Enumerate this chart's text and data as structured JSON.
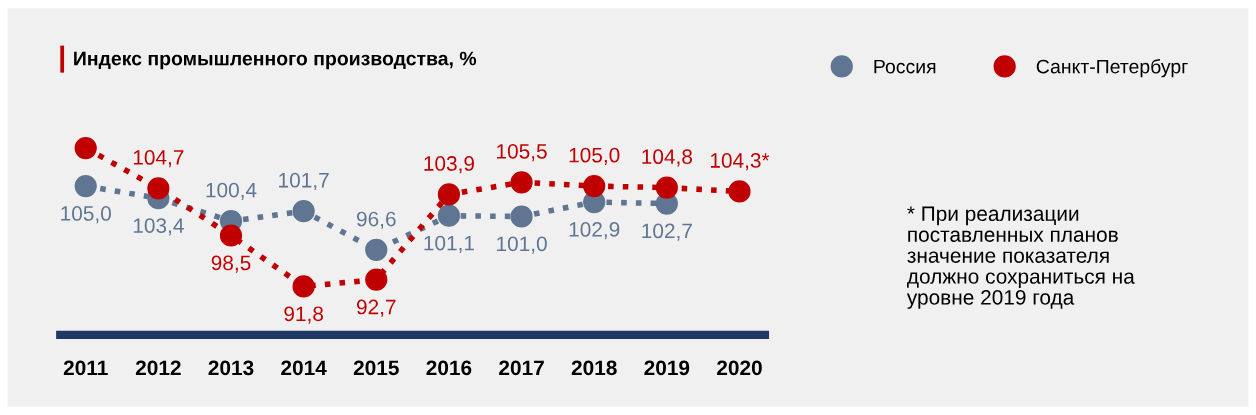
{
  "chart_data": {
    "type": "line",
    "title": "Индекс промышленного производства, %",
    "categories": [
      "2011",
      "2012",
      "2013",
      "2014",
      "2015",
      "2016",
      "2017",
      "2018",
      "2019",
      "2020"
    ],
    "series": [
      {
        "name": "Россия",
        "color": "#5f7591",
        "values": [
          105.0,
          103.4,
          100.4,
          101.7,
          96.6,
          101.1,
          101.0,
          102.9,
          102.7,
          null
        ],
        "value_labels": [
          "105,0",
          "103,4",
          "100,4",
          "101,7",
          "96,6",
          "101,1",
          "101,0",
          "102,9",
          "102,7",
          null
        ]
      },
      {
        "name": "Санкт-Петербург",
        "color": "#c00000",
        "values": [
          110.0,
          104.7,
          98.5,
          91.8,
          92.7,
          103.9,
          105.5,
          105.0,
          104.8,
          104.3
        ],
        "value_labels": [
          null,
          "104,7",
          "98,5",
          "91,8",
          "92,7",
          "103,9",
          "105,5",
          "105,0",
          "104,8",
          "104,3*"
        ]
      }
    ],
    "tick_labels": "x",
    "marker": "circle",
    "line_style": "dotted",
    "legend": "top right",
    "annotations": [
      "* При реализации\nпоставленных планов\nзначение показателя\nдолжно сохраниться на\nуровне 2019 года"
    ]
  }
}
